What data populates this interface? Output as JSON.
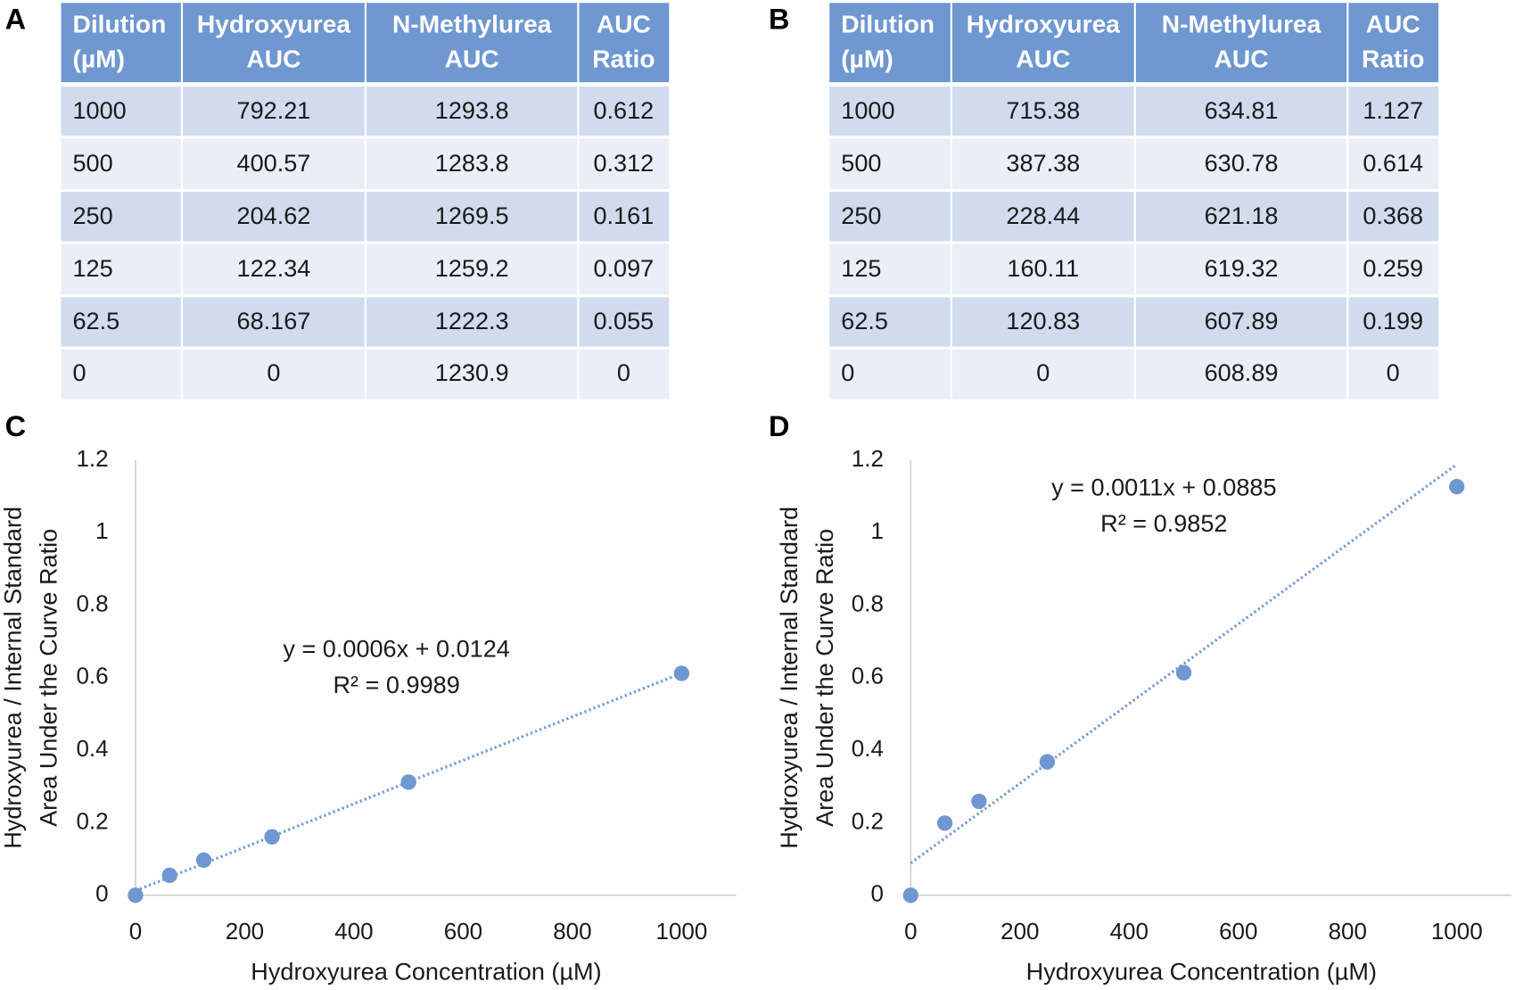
{
  "tables": [
    {
      "label": "A",
      "header": [
        [
          "Dilution",
          "(µM)"
        ],
        [
          "Hydroxyurea",
          "AUC"
        ],
        [
          "N-Methylurea",
          "AUC"
        ],
        [
          "AUC",
          "Ratio"
        ]
      ],
      "rows": [
        [
          "1000",
          "792.21",
          "1293.8",
          "0.612"
        ],
        [
          "500",
          "400.57",
          "1283.8",
          "0.312"
        ],
        [
          "250",
          "204.62",
          "1269.5",
          "0.161"
        ],
        [
          "125",
          "122.34",
          "1259.2",
          "0.097"
        ],
        [
          "62.5",
          "68.167",
          "1222.3",
          "0.055"
        ],
        [
          "0",
          "0",
          "1230.9",
          "0"
        ]
      ]
    },
    {
      "label": "B",
      "header": [
        [
          "Dilution",
          "(µM)"
        ],
        [
          "Hydroxyurea",
          "AUC"
        ],
        [
          "N-Methylurea",
          "AUC"
        ],
        [
          "AUC",
          "Ratio"
        ]
      ],
      "rows": [
        [
          "1000",
          "715.38",
          "634.81",
          "1.127"
        ],
        [
          "500",
          "387.38",
          "630.78",
          "0.614"
        ],
        [
          "250",
          "228.44",
          "621.18",
          "0.368"
        ],
        [
          "125",
          "160.11",
          "619.32",
          "0.259"
        ],
        [
          "62.5",
          "120.83",
          "607.89",
          "0.199"
        ],
        [
          "0",
          "0",
          "608.89",
          "0"
        ]
      ]
    }
  ],
  "chart_data": [
    {
      "type": "scatter",
      "label": "C",
      "x_label": "Hydroxyurea Concentration (µM)",
      "y_label": [
        "Hydroxyurea / Internal Standard",
        "Area Under the Curve Ratio"
      ],
      "x": [
        1000,
        500,
        250,
        125,
        62.5,
        0
      ],
      "values": [
        0.612,
        0.312,
        0.161,
        0.097,
        0.055,
        0
      ],
      "color": "#6f97d0",
      "xlim": [
        0,
        1100
      ],
      "xticks": [
        0,
        200,
        400,
        600,
        800,
        1000
      ],
      "ylim": [
        0,
        1.2
      ],
      "yticks": [
        0,
        0.2,
        0.4,
        0.6,
        0.8,
        1,
        1.2
      ],
      "trendline": {
        "slope": 0.0006,
        "intercept": 0.0124,
        "equation": "y = 0.0006x + 0.0124",
        "r2_label": "R² = 0.9989"
      }
    },
    {
      "type": "scatter",
      "label": "D",
      "x_label": "Hydroxyurea Concentration (µM)",
      "y_label": [
        "Hydroxyurea / Internal Standard",
        "Area Under the Curve Ratio"
      ],
      "x": [
        1000,
        500,
        250,
        125,
        62.5,
        0
      ],
      "values": [
        1.127,
        0.614,
        0.368,
        0.259,
        0.199,
        0
      ],
      "color": "#6f97d0",
      "xlim": [
        0,
        1100
      ],
      "xticks": [
        0,
        200,
        400,
        600,
        800,
        1000
      ],
      "ylim": [
        0,
        1.2
      ],
      "yticks": [
        0,
        0.2,
        0.4,
        0.6,
        0.8,
        1,
        1.2
      ],
      "trendline": {
        "slope": 0.0011,
        "intercept": 0.0885,
        "equation": "y = 0.0011x + 0.0885",
        "r2_label": "R² = 0.9852"
      }
    }
  ]
}
